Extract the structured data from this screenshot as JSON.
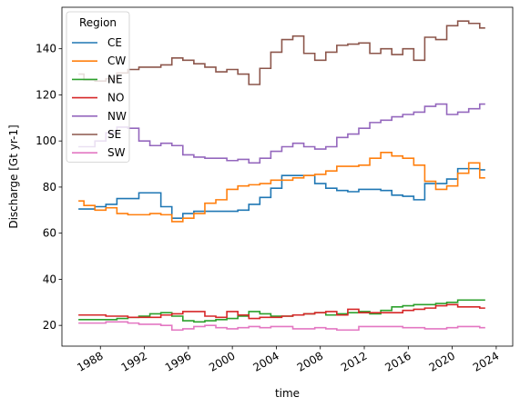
{
  "chart_data": {
    "type": "line",
    "step": true,
    "xlabel": "time",
    "ylabel": "Discharge [Gt yr-1]",
    "xlim": [
      1984.5,
      2025.5
    ],
    "ylim": [
      11,
      158
    ],
    "x_ticks": [
      1988,
      1992,
      1996,
      2000,
      2004,
      2008,
      2012,
      2016,
      2020,
      2024
    ],
    "x_tick_labels": [
      "1988",
      "1992",
      "1996",
      "2000",
      "2004",
      "2008",
      "2012",
      "2016",
      "2020",
      "2024"
    ],
    "y_ticks": [
      20,
      40,
      60,
      80,
      100,
      120,
      140
    ],
    "y_tick_labels": [
      "20",
      "40",
      "60",
      "80",
      "100",
      "120",
      "140"
    ],
    "grid": false,
    "legend": {
      "title": "Region",
      "placement": "top-left"
    },
    "x": [
      1986,
      1987,
      1988,
      1989,
      1990,
      1991,
      1992,
      1993,
      1994,
      1995,
      1996,
      1997,
      1998,
      1999,
      2000,
      2001,
      2002,
      2003,
      2004,
      2005,
      2006,
      2007,
      2008,
      2009,
      2010,
      2011,
      2012,
      2013,
      2014,
      2015,
      2016,
      2017,
      2018,
      2019,
      2020,
      2021,
      2022,
      2023
    ],
    "series": [
      {
        "name": "CE",
        "color": "#1f77b4",
        "values": [
          70.5,
          70.5,
          71.5,
          72.5,
          75,
          75,
          77.5,
          77.5,
          71.5,
          66.5,
          68.5,
          69.5,
          69.5,
          69.5,
          69.5,
          70,
          72.5,
          75.5,
          79.5,
          85,
          85,
          85,
          81.5,
          79.5,
          78.5,
          78,
          79,
          79,
          78.5,
          76.5,
          76,
          74.5,
          81.5,
          81.5,
          83.5,
          88,
          88,
          87.5
        ]
      },
      {
        "name": "CW",
        "color": "#ff7f0e",
        "values": [
          74,
          72,
          70,
          71,
          68.5,
          68,
          68,
          68.5,
          68,
          65,
          66.5,
          68.5,
          73,
          74.5,
          79,
          80.5,
          81,
          81.5,
          83,
          83,
          84,
          85,
          85.5,
          87,
          89,
          89,
          89.5,
          92.5,
          95,
          93.5,
          92.5,
          89.5,
          82.5,
          79,
          80.5,
          86,
          90.5,
          84
        ]
      },
      {
        "name": "NE",
        "color": "#2ca02c",
        "values": [
          22.5,
          22.5,
          22.5,
          22.5,
          23,
          23.5,
          24,
          25,
          25.5,
          24,
          22,
          21.5,
          22,
          22.5,
          23,
          24,
          26,
          25,
          24,
          24,
          24.5,
          25,
          25.5,
          24.5,
          25,
          25.5,
          26,
          25,
          26.5,
          28,
          28.5,
          29,
          29,
          29.5,
          30,
          31,
          31,
          31
        ]
      },
      {
        "name": "NO",
        "color": "#d62728",
        "values": [
          24.5,
          24.5,
          24.5,
          24,
          24,
          23.5,
          23.5,
          23.5,
          24.5,
          25,
          26,
          26,
          24,
          23.5,
          26,
          24.5,
          23,
          23.5,
          23.5,
          24,
          24.5,
          25,
          25.5,
          26,
          24.5,
          27,
          25.5,
          25.5,
          25.5,
          25.5,
          26.5,
          27,
          27.5,
          28.5,
          29,
          28,
          28,
          27.5
        ]
      },
      {
        "name": "NW",
        "color": "#9467bd",
        "values": [
          97.5,
          97.5,
          100,
          103.5,
          106,
          105.5,
          100,
          98,
          99,
          98,
          94,
          93,
          92.5,
          92.5,
          91.5,
          92,
          90.5,
          92.5,
          95.5,
          97.5,
          99,
          97.5,
          96.5,
          97.5,
          101.5,
          103,
          105.5,
          108,
          109,
          110.5,
          111.5,
          112.5,
          115,
          116,
          111.5,
          112.5,
          114,
          116
        ]
      },
      {
        "name": "SE",
        "color": "#8c564b",
        "values": [
          129,
          126.5,
          126,
          127,
          129.5,
          131,
          132,
          132,
          133,
          136,
          135,
          133.5,
          132,
          130,
          131,
          129,
          124.5,
          131.5,
          138.5,
          144,
          145.5,
          138,
          135,
          138.5,
          141.5,
          142,
          142.5,
          138,
          140,
          137.5,
          140,
          135,
          145,
          144,
          150,
          152,
          151,
          149
        ]
      },
      {
        "name": "SW",
        "color": "#e377c2",
        "values": [
          21,
          21,
          21,
          21.5,
          21.5,
          21,
          20.5,
          20.5,
          20,
          18,
          18.5,
          19.5,
          20,
          19,
          18.5,
          19,
          19.5,
          19,
          19.5,
          19.5,
          18.5,
          18.5,
          19,
          18.5,
          18,
          18,
          19.5,
          19.5,
          19.5,
          19.5,
          19,
          19,
          18.5,
          18.5,
          19,
          19.5,
          19.5,
          19
        ]
      }
    ]
  }
}
